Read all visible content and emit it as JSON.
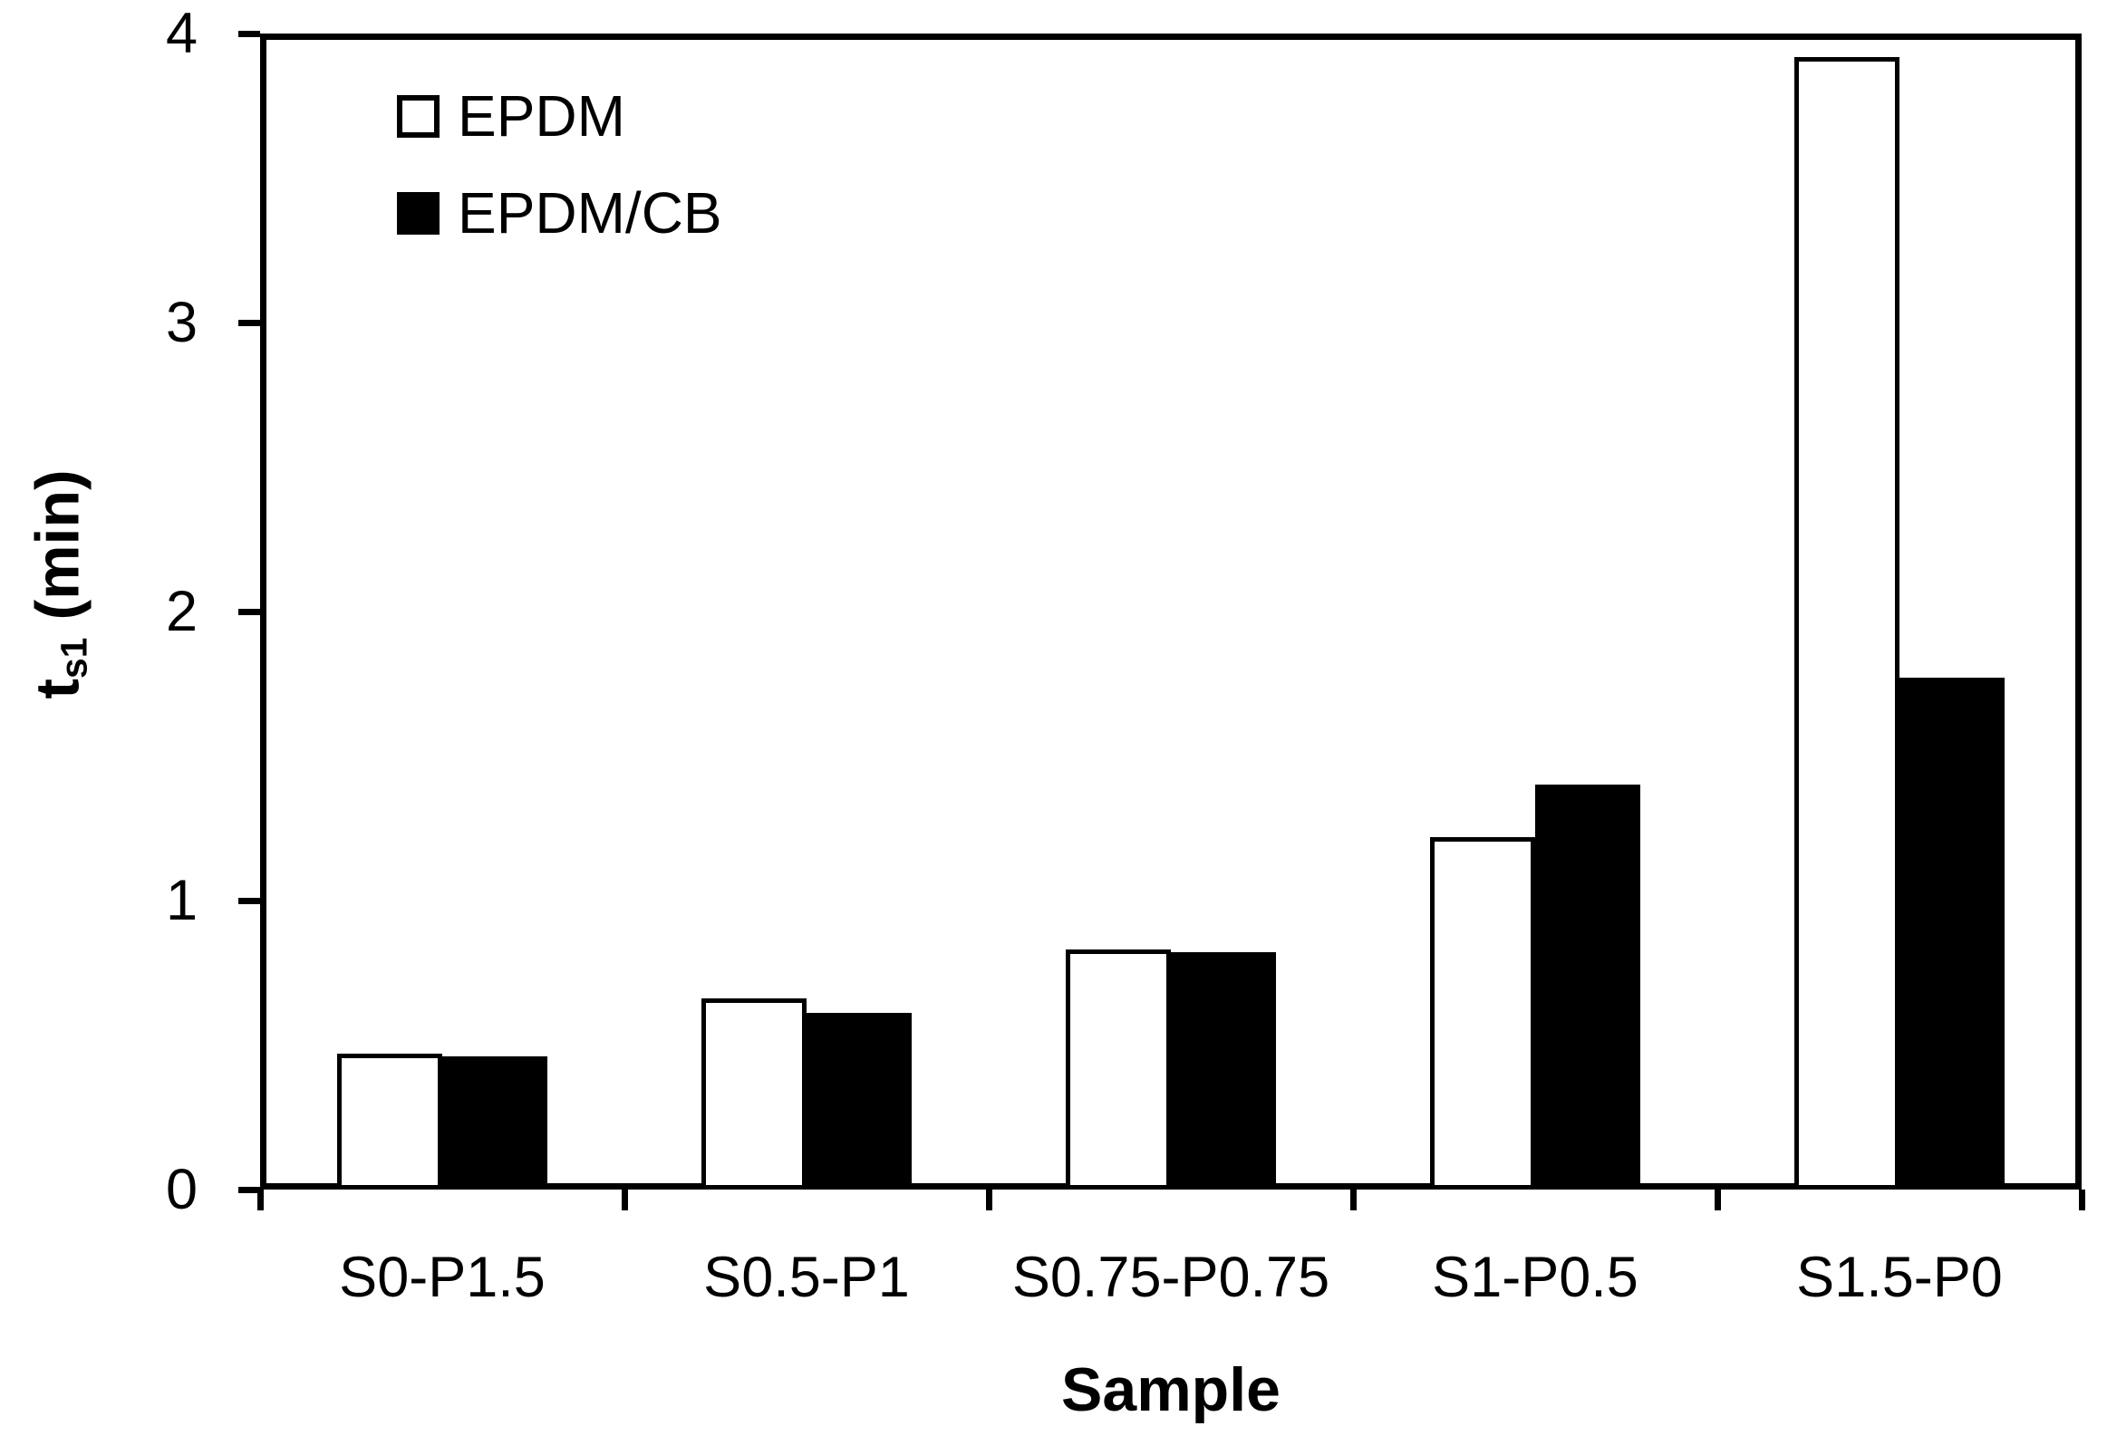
{
  "figure": {
    "background": "#ffffff",
    "ink_color": "#000000"
  },
  "chart_data": {
    "type": "bar",
    "title": "",
    "xlabel": "Sample",
    "ylabel": {
      "base": "t",
      "subscript": "s1",
      "unit": "(min)"
    },
    "categories": [
      "S0-P1.5",
      "S0.5-P1",
      "S0.75-P0.75",
      "S1-P0.5",
      "S1.5-P0"
    ],
    "series": [
      {
        "name": "EPDM",
        "fill": "#ffffff",
        "border": "#000000",
        "values": [
          0.47,
          0.66,
          0.83,
          1.22,
          3.92
        ]
      },
      {
        "name": "EPDM/CB",
        "fill": "#000000",
        "border": "#000000",
        "values": [
          0.46,
          0.61,
          0.82,
          1.4,
          1.77
        ]
      }
    ],
    "y_ticks": [
      0,
      1,
      2,
      3,
      4
    ],
    "ylim": [
      0,
      4
    ],
    "grid": false,
    "legend_position": "top-left-inside"
  }
}
